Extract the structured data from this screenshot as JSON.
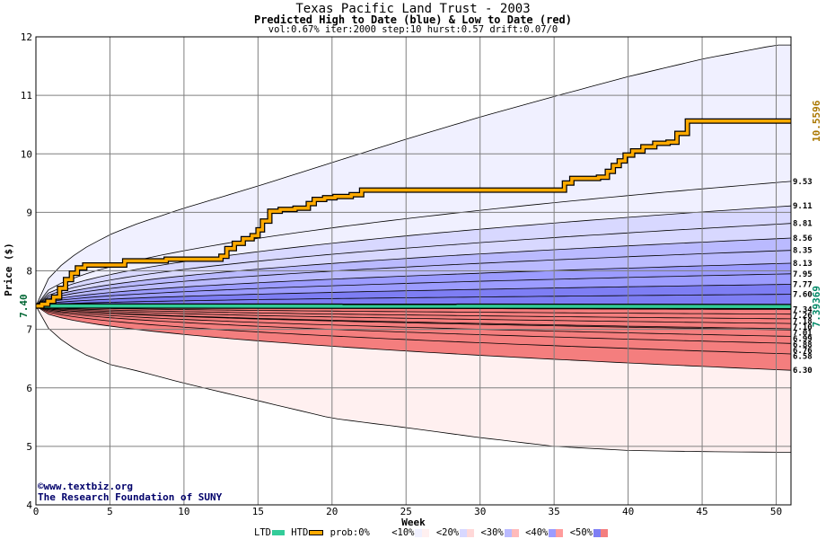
{
  "title": "Texas Pacific Land Trust - 2003",
  "subtitle": "Predicted High to Date (blue) &  Low to Date (red)",
  "params": "vol:0.67% iter:2000 step:10 hurst:0.57 drift:0.07/0",
  "credit_line1": "©www.textbiz.org",
  "credit_line2": "The Research Foundation of SUNY",
  "legend": {
    "ltd": "LTD",
    "htd": "HTD",
    "prob": "prob:0%",
    "p10": "<10%",
    "p20": "<20%",
    "p30": "<30%",
    "p40": "<40%",
    "p50": "<50%"
  },
  "colors": {
    "ltd": "#33cc99",
    "htd": "#ffaa00",
    "blue_bands": [
      "#f0f0ff",
      "#d8d8ff",
      "#babaff",
      "#9c9cff",
      "#7e7ef4"
    ],
    "red_bands": [
      "#fff0f0",
      "#ffd8d8",
      "#ffbaba",
      "#ff9c9c",
      "#f47e7e"
    ]
  },
  "chart_data": {
    "type": "area",
    "title": "Texas Pacific Land Trust - 2003",
    "xlabel": "Week",
    "ylabel": "Price ($)",
    "xlim": [
      0,
      51
    ],
    "ylim": [
      4,
      12
    ],
    "xticks": [
      0,
      5,
      10,
      15,
      20,
      25,
      30,
      35,
      40,
      45,
      50
    ],
    "yticks": [
      4,
      5,
      6,
      7,
      8,
      9,
      10,
      11,
      12
    ],
    "grid": true,
    "start_price": 7.4,
    "start_label": "7.40",
    "last_htd": "10.5596",
    "last_ltd": "7.39369",
    "blue_envelope": {
      "x": [
        0,
        1,
        3,
        5,
        7,
        10,
        15,
        20,
        25,
        30,
        35,
        40,
        45,
        50
      ],
      "y": [
        7.4,
        7.95,
        8.35,
        8.62,
        8.82,
        9.07,
        9.45,
        9.85,
        10.25,
        10.63,
        10.98,
        11.32,
        11.62,
        11.86
      ]
    },
    "red_envelope": {
      "x": [
        0,
        1,
        3,
        5,
        7,
        10,
        15,
        20,
        25,
        30,
        35,
        40,
        45,
        50
      ],
      "y": [
        7.4,
        6.95,
        6.6,
        6.4,
        6.28,
        6.08,
        5.78,
        5.48,
        5.32,
        5.15,
        5.0,
        4.93,
        4.91,
        4.9
      ]
    },
    "blue_quantiles": [
      {
        "label": "9.53",
        "end": 9.53
      },
      {
        "label": "9.11",
        "end": 9.11
      },
      {
        "label": "8.81",
        "end": 8.81
      },
      {
        "label": "8.56",
        "end": 8.56
      },
      {
        "label": "8.35",
        "end": 8.35
      },
      {
        "label": "8.13",
        "end": 8.13
      },
      {
        "label": "7.95",
        "end": 7.95
      },
      {
        "label": "7.77",
        "end": 7.77
      },
      {
        "label": "7.60",
        "end": 7.6
      },
      {
        "label": "7.34",
        "end": 7.34
      }
    ],
    "red_quantiles": [
      {
        "label": "7.26",
        "end": 7.26
      },
      {
        "label": "7.18",
        "end": 7.18
      },
      {
        "label": "7.10",
        "end": 7.1
      },
      {
        "label": "7.01",
        "end": 7.01
      },
      {
        "label": "6.99",
        "end": 6.99
      },
      {
        "label": "6.88",
        "end": 6.88
      },
      {
        "label": "6.76",
        "end": 6.76
      },
      {
        "label": "6.58",
        "end": 6.58
      },
      {
        "label": "6.30",
        "end": 6.3
      }
    ],
    "htd_series": {
      "name": "HTD",
      "x": [
        0,
        0.4,
        0.8,
        1.2,
        1.6,
        2.0,
        2.4,
        2.8,
        3.3,
        6.0,
        8.8,
        12.5,
        12.9,
        13.4,
        14.0,
        14.6,
        15.0,
        15.3,
        15.8,
        16.5,
        17.5,
        18.4,
        18.8,
        19.5,
        20.2,
        21.3,
        22.0,
        29.0,
        35.3,
        35.7,
        36.2,
        38.0,
        38.6,
        39.0,
        39.4,
        39.8,
        40.3,
        41.0,
        41.8,
        42.7,
        43.3,
        44.0,
        51.0
      ],
      "y": [
        7.4,
        7.43,
        7.48,
        7.55,
        7.7,
        7.85,
        7.96,
        8.05,
        8.1,
        8.17,
        8.2,
        8.25,
        8.38,
        8.47,
        8.55,
        8.6,
        8.7,
        8.85,
        9.02,
        9.05,
        9.07,
        9.15,
        9.22,
        9.25,
        9.27,
        9.3,
        9.38,
        9.38,
        9.38,
        9.5,
        9.58,
        9.6,
        9.7,
        9.8,
        9.88,
        9.98,
        10.05,
        10.12,
        10.18,
        10.2,
        10.35,
        10.56,
        10.56
      ]
    },
    "ltd_series": {
      "name": "LTD",
      "x": [
        0,
        51
      ],
      "y": [
        7.4,
        7.39
      ]
    }
  }
}
